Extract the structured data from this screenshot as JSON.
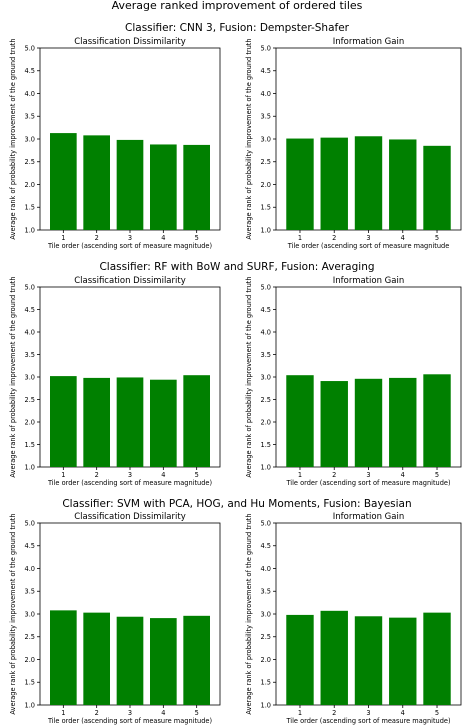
{
  "figure": {
    "suptitle": "Average ranked improvement of ordered tiles"
  },
  "chart_data": [
    {
      "type": "bar",
      "row_title": "Classifier: CNN 3, Fusion: Dempster-Shafer",
      "title": "Classification Dissimilarity",
      "categories": [
        "1",
        "2",
        "3",
        "4",
        "5"
      ],
      "values": [
        3.13,
        3.08,
        2.98,
        2.88,
        2.87
      ],
      "xlabel": "Tile order (ascending sort of measure magnitude)",
      "ylabel": "Average rank of probability improvement of the ground truth",
      "ylim": [
        1.0,
        5.0
      ],
      "yticks": [
        "1.0",
        "1.5",
        "2.0",
        "2.5",
        "3.0",
        "3.5",
        "4.0",
        "4.5",
        "5.0"
      ],
      "color": "#008000"
    },
    {
      "type": "bar",
      "row_title": "Classifier: CNN 3, Fusion: Dempster-Shafer",
      "title": "Information Gain",
      "categories": [
        "1",
        "2",
        "3",
        "4",
        "5"
      ],
      "values": [
        3.01,
        3.03,
        3.06,
        2.99,
        2.85
      ],
      "xlabel": "Tile order (ascending sort of measure magnitude",
      "ylabel": "Average rank of probability improvement of the ground truth",
      "ylim": [
        1.0,
        5.0
      ],
      "yticks": [
        "1.0",
        "1.5",
        "2.0",
        "2.5",
        "3.0",
        "3.5",
        "4.0",
        "4.5",
        "5.0"
      ],
      "color": "#008000"
    },
    {
      "type": "bar",
      "row_title": "Classifier: RF with BoW and SURF, Fusion: Averaging",
      "title": "Classification Dissimilarity",
      "categories": [
        "1",
        "2",
        "3",
        "4",
        "5"
      ],
      "values": [
        3.02,
        2.98,
        2.99,
        2.94,
        3.04
      ],
      "xlabel": "Tile order (ascending sort of measure magnitude)",
      "ylabel": "Average rank of probability improvement of the ground truth",
      "ylim": [
        1.0,
        5.0
      ],
      "yticks": [
        "1.0",
        "1.5",
        "2.0",
        "2.5",
        "3.0",
        "3.5",
        "4.0",
        "4.5",
        "5.0"
      ],
      "color": "#008000"
    },
    {
      "type": "bar",
      "row_title": "Classifier: RF with BoW and SURF, Fusion: Averaging",
      "title": "Information Gain",
      "categories": [
        "1",
        "2",
        "3",
        "4",
        "5"
      ],
      "values": [
        3.04,
        2.91,
        2.96,
        2.98,
        3.06
      ],
      "xlabel": "Tile order (ascending sort of measure magnitude)",
      "ylabel": "Average rank of probability improvement of the ground truth",
      "ylim": [
        1.0,
        5.0
      ],
      "yticks": [
        "1.0",
        "1.5",
        "2.0",
        "2.5",
        "3.0",
        "3.5",
        "4.0",
        "4.5",
        "5.0"
      ],
      "color": "#008000"
    },
    {
      "type": "bar",
      "row_title": "Classifier: SVM with PCA, HOG, and Hu Moments, Fusion: Bayesian",
      "title": "Classification Dissimilarity",
      "categories": [
        "1",
        "2",
        "3",
        "4",
        "5"
      ],
      "values": [
        3.08,
        3.03,
        2.94,
        2.91,
        2.96
      ],
      "xlabel": "Tile order (ascending sort of measure magnitude)",
      "ylabel": "Average rank of probability improvement of the ground truth",
      "ylim": [
        1.0,
        5.0
      ],
      "yticks": [
        "1.0",
        "1.5",
        "2.0",
        "2.5",
        "3.0",
        "3.5",
        "4.0",
        "4.5",
        "5.0"
      ],
      "color": "#008000"
    },
    {
      "type": "bar",
      "row_title": "Classifier: SVM with PCA, HOG, and Hu Moments, Fusion: Bayesian",
      "title": "Information Gain",
      "categories": [
        "1",
        "2",
        "3",
        "4",
        "5"
      ],
      "values": [
        2.98,
        3.07,
        2.95,
        2.92,
        3.03
      ],
      "xlabel": "Tile order (ascending sort of measure magnitude)",
      "ylabel": "Average rank of probability improvement of the ground truth",
      "ylim": [
        1.0,
        5.0
      ],
      "yticks": [
        "1.0",
        "1.5",
        "2.0",
        "2.5",
        "3.0",
        "3.5",
        "4.0",
        "4.5",
        "5.0"
      ],
      "color": "#008000"
    }
  ]
}
